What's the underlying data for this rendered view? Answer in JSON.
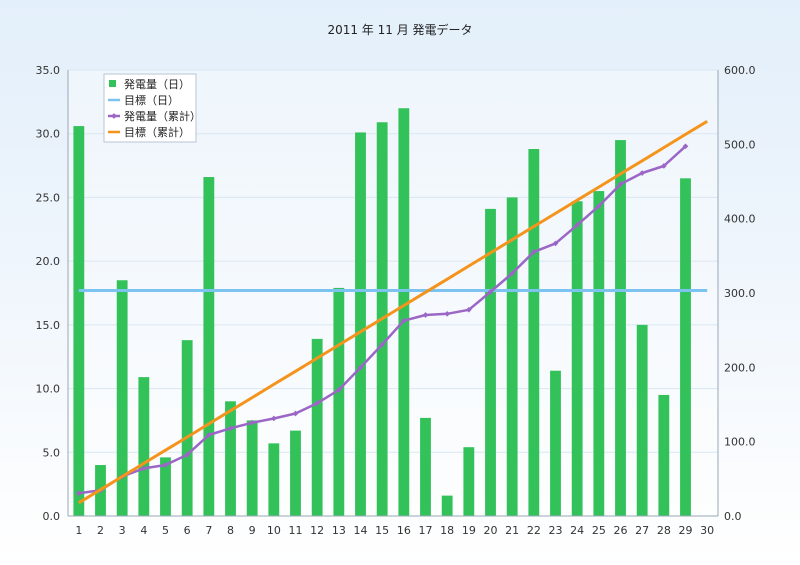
{
  "chart_data": {
    "type": "bar+line",
    "title": "2011 年 11 月 発電データ",
    "x": [
      1,
      2,
      3,
      4,
      5,
      6,
      7,
      8,
      9,
      10,
      11,
      12,
      13,
      14,
      15,
      16,
      17,
      18,
      19,
      20,
      21,
      22,
      23,
      24,
      25,
      26,
      27,
      28,
      29,
      30
    ],
    "xticks": [
      "1",
      "2",
      "3",
      "4",
      "5",
      "6",
      "7",
      "8",
      "9",
      "10",
      "11",
      "12",
      "13",
      "14",
      "15",
      "16",
      "17",
      "18",
      "19",
      "20",
      "21",
      "22",
      "23",
      "24",
      "25",
      "26",
      "27",
      "28",
      "29",
      "30"
    ],
    "y_left": {
      "range": [
        0,
        35
      ],
      "ticks": [
        "0.0",
        "5.0",
        "10.0",
        "15.0",
        "20.0",
        "25.0",
        "30.0",
        "35.0"
      ]
    },
    "y_right": {
      "range": [
        0,
        600
      ],
      "ticks": [
        "0.0",
        "100.0",
        "200.0",
        "300.0",
        "400.0",
        "500.0",
        "600.0"
      ]
    },
    "grid": true,
    "legend_position": "top-left",
    "series": [
      {
        "name": "発電量（日）",
        "kind": "bar",
        "axis": "left",
        "color": "#33c25a",
        "values": [
          30.6,
          4.0,
          18.5,
          10.9,
          4.6,
          13.8,
          26.6,
          9.0,
          7.5,
          5.7,
          6.7,
          13.9,
          17.9,
          30.1,
          30.9,
          32.0,
          7.7,
          1.6,
          5.4,
          24.1,
          25.0,
          28.8,
          11.4,
          24.7,
          25.5,
          29.5,
          15.0,
          9.5,
          26.5,
          null
        ]
      },
      {
        "name": "目標（日）",
        "kind": "line",
        "axis": "left",
        "color": "#7cc3ef",
        "values": [
          17.7,
          17.7,
          17.7,
          17.7,
          17.7,
          17.7,
          17.7,
          17.7,
          17.7,
          17.7,
          17.7,
          17.7,
          17.7,
          17.7,
          17.7,
          17.7,
          17.7,
          17.7,
          17.7,
          17.7,
          17.7,
          17.7,
          17.7,
          17.7,
          17.7,
          17.7,
          17.7,
          17.7,
          17.7,
          17.7
        ]
      },
      {
        "name": "発電量（累計）",
        "kind": "line-marker",
        "axis": "right",
        "color": "#9b66c6",
        "values": [
          30.6,
          34.6,
          53.1,
          64.0,
          68.6,
          82.4,
          109.0,
          118.0,
          125.5,
          131.2,
          137.9,
          151.8,
          169.7,
          199.8,
          230.7,
          262.7,
          270.4,
          272.0,
          277.4,
          301.5,
          326.5,
          355.3,
          366.7,
          391.4,
          416.9,
          446.4,
          461.4,
          470.9,
          497.4,
          null
        ]
      },
      {
        "name": "目標（累計）",
        "kind": "line",
        "axis": "right",
        "color": "#f5941c",
        "values": [
          17.7,
          35.4,
          53.1,
          70.8,
          88.5,
          106.2,
          123.9,
          141.6,
          159.3,
          177.0,
          194.7,
          212.4,
          230.1,
          247.8,
          265.5,
          283.2,
          300.9,
          318.6,
          336.3,
          354.0,
          371.7,
          389.4,
          407.1,
          424.8,
          442.5,
          460.2,
          477.9,
          495.6,
          513.3,
          531.0
        ]
      }
    ]
  }
}
